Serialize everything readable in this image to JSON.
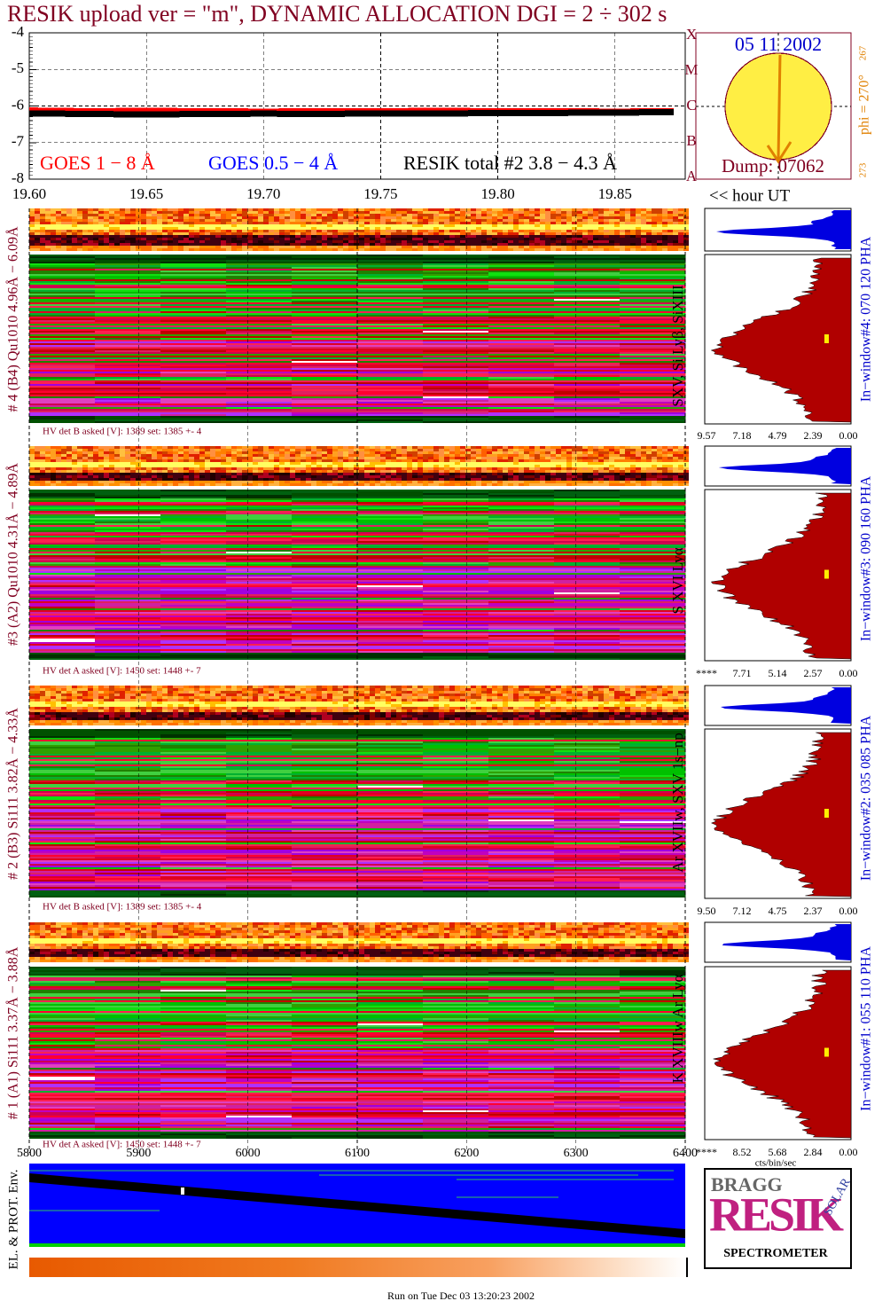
{
  "chart_data": {
    "type": "line",
    "title": "RESIK upload ver = \"m\", DYNAMIC ALLOCATION  DGI =   2 ÷ 302 s",
    "x": [
      19.6,
      19.625,
      19.65,
      19.675,
      19.7,
      19.725,
      19.75,
      19.775,
      19.8,
      19.825,
      19.85,
      19.875
    ],
    "xlim": [
      19.6,
      19.88
    ],
    "xticks": [
      {
        "value": 19.6,
        "label": "19.60"
      },
      {
        "value": 19.65,
        "label": "19.65"
      },
      {
        "value": 19.7,
        "label": "19.70"
      },
      {
        "value": 19.75,
        "label": "19.75"
      },
      {
        "value": 19.8,
        "label": "19.80"
      },
      {
        "value": 19.85,
        "label": "19.85"
      }
    ],
    "xlabel": "<< hour UT",
    "ylim": [
      -8,
      -4
    ],
    "yticks": [
      -8,
      -7,
      -6,
      -5,
      -4
    ],
    "grid": true,
    "series": [
      {
        "name": "GOES 1 − 8 Å",
        "color": "#ff0000",
        "values": [
          -6.1,
          -6.12,
          -6.11,
          -6.12,
          -6.13,
          -6.12,
          -6.12,
          -6.11,
          -6.12,
          -6.12,
          -6.13,
          -6.12
        ]
      },
      {
        "name": "GOES 0.5 − 4 Å",
        "color": "#0000ff",
        "values": [
          null,
          null,
          null,
          null,
          null,
          null,
          null,
          null,
          null,
          null,
          null,
          null
        ]
      },
      {
        "name": "RESIK total #2  3.8 − 4.3 Å",
        "color": "#000000",
        "values": [
          -6.2,
          -6.22,
          -6.23,
          -6.22,
          -6.21,
          -6.22,
          -6.2,
          -6.21,
          -6.19,
          -6.19,
          -6.18,
          -6.17
        ]
      }
    ]
  },
  "figure": {
    "sun": {
      "date": "05 11 2002",
      "dump": "Dump: 07062",
      "phi": "phi = 270°",
      "phi_sub": "267",
      "side": "273",
      "classes": [
        "A",
        "B",
        "C",
        "M",
        "X"
      ]
    },
    "panels": [
      {
        "label": "# 4 (B4) Qu1010 4.96Å − 6.09Å",
        "lines": "SXV, Si Lyβ, SiXIII",
        "window": "In−window#4:  070 120 PHA",
        "hv": "HV det B asked [V]:  1389 set:  1385 +-    4",
        "pha_ticks": [
          "9.57",
          "7.18",
          "4.79",
          "2.39",
          "0.00"
        ]
      },
      {
        "label": "#3 (A2) Qu1010  4.31Å − 4.89Å",
        "lines": "S XVI Lyα",
        "window": "In−window#3:  090 160 PHA",
        "hv": "HV det A asked [V]:  1450 set:  1448 +-    7",
        "pha_ticks": [
          "****",
          "7.71",
          "5.14",
          "2.57",
          "0.00"
        ]
      },
      {
        "label": "# 2 (B3) Si111  3.82Å − 4.33Å",
        "lines": "Ar XVIIw,  SXV 1s−np",
        "window": "In−window#2:  035 085 PHA",
        "hv": "HV det B asked [V]:  1389 set:  1385 +-    4",
        "pha_ticks": [
          "9.50",
          "7.12",
          "4.75",
          "2.37",
          "0.00"
        ]
      },
      {
        "label": "# 1 (A1) Si111  3.37Å − 3.88Å",
        "lines": "K XVIIIw  Ar Lyα",
        "window": "In−window#1:  055 110 PHA",
        "hv": "HV det A asked [V]:  1450 set:  1448 +-    7",
        "pha_ticks": [
          "****",
          "8.52",
          "5.68",
          "2.84",
          "0.00"
        ]
      }
    ],
    "pha_unit": "cts/bin/sec",
    "channel_axis": {
      "xlim": [
        5800,
        6400
      ],
      "xticks": [
        5800,
        5900,
        6000,
        6100,
        6200,
        6300,
        6400
      ]
    },
    "env_label": "EL. & PROT. Env.",
    "logo": {
      "top": "BRAGG",
      "main": "RESIK",
      "side": "SOLAR",
      "bottom": "SPECTROMETER"
    },
    "footer": "Run on Tue Dec 03 13:20:23 2002"
  }
}
